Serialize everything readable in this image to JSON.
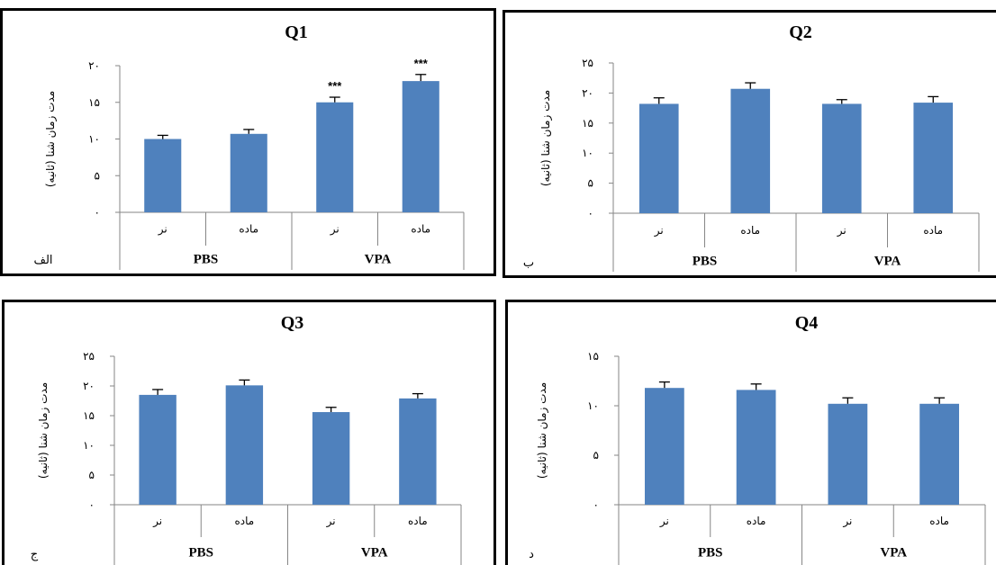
{
  "colors": {
    "bar": "#4F81BD",
    "error_bar": "#000000",
    "axis": "#868686",
    "panel_border": "#000000"
  },
  "chart_data": [
    {
      "type": "bar",
      "title": "Q1",
      "ylabel": "مدت زمان شنا (ثانیه)",
      "corner_label": "الف",
      "ylim": [
        0,
        20
      ],
      "yticks": [
        "۰",
        "۵",
        "۱۰",
        "۱۵",
        "۲۰"
      ],
      "categories": [
        "نر",
        "ماده",
        "نر",
        "ماده"
      ],
      "groups": [
        "PBS",
        "VPA"
      ],
      "values": [
        10,
        10.7,
        15,
        17.9
      ],
      "errors": [
        0.5,
        0.6,
        0.7,
        0.9
      ],
      "annotations": [
        "",
        "",
        "***",
        "***"
      ],
      "grid": false
    },
    {
      "type": "bar",
      "title": "Q2",
      "ylabel": "مدت زمان شنا (ثانیه)",
      "corner_label": "ب",
      "ylim": [
        0,
        25
      ],
      "yticks": [
        "۰",
        "۵",
        "۱۰",
        "۱۵",
        "۲۰",
        "۲۵"
      ],
      "categories": [
        "نر",
        "ماده",
        "نر",
        "ماده"
      ],
      "groups": [
        "PBS",
        "VPA"
      ],
      "values": [
        18.2,
        20.7,
        18.2,
        18.4
      ],
      "errors": [
        1.0,
        1.0,
        0.7,
        1.0
      ],
      "annotations": [
        "",
        "",
        "",
        ""
      ],
      "grid": false
    },
    {
      "type": "bar",
      "title": "Q3",
      "ylabel": "مدت زمان شنا (ثانیه)",
      "corner_label": "ج",
      "ylim": [
        0,
        25
      ],
      "yticks": [
        "۰",
        "۵",
        "۱۰",
        "۱۵",
        "۲۰",
        "۲۵"
      ],
      "categories": [
        "نر",
        "ماده",
        "نر",
        "ماده"
      ],
      "groups": [
        "PBS",
        "VPA"
      ],
      "values": [
        18.5,
        20.1,
        15.6,
        17.9
      ],
      "errors": [
        0.9,
        0.9,
        0.8,
        0.8
      ],
      "annotations": [
        "",
        "",
        "",
        ""
      ],
      "grid": false
    },
    {
      "type": "bar",
      "title": "Q4",
      "ylabel": "مدت زمان شنا (ثانیه)",
      "corner_label": "د",
      "ylim": [
        0,
        15
      ],
      "yticks": [
        "۰",
        "۵",
        "۱۰",
        "۱۵"
      ],
      "categories": [
        "نر",
        "ماده",
        "نر",
        "ماده"
      ],
      "groups": [
        "PBS",
        "VPA"
      ],
      "values": [
        11.8,
        11.6,
        10.2,
        10.2
      ],
      "errors": [
        0.6,
        0.6,
        0.6,
        0.6
      ],
      "annotations": [
        "",
        "",
        "",
        ""
      ],
      "grid": false
    }
  ]
}
